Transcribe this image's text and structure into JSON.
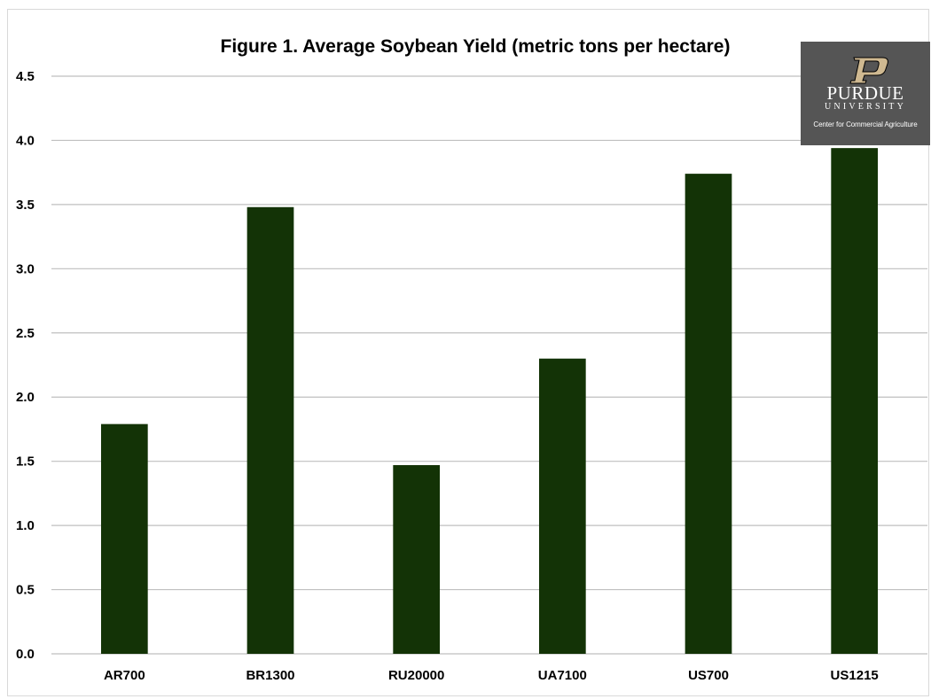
{
  "chart_data": {
    "type": "bar",
    "title": "Figure 1. Average Soybean Yield (metric tons per hectare)",
    "categories": [
      "AR700",
      "BR1300",
      "RU20000",
      "UA7100",
      "US700",
      "US1215"
    ],
    "values": [
      1.79,
      3.48,
      1.47,
      2.3,
      3.74,
      3.94
    ],
    "ylim": [
      0,
      4.5
    ],
    "yticks": [
      "0.0",
      "0.5",
      "1.0",
      "1.5",
      "2.0",
      "2.5",
      "3.0",
      "3.5",
      "4.0",
      "4.5"
    ],
    "xlabel": "",
    "ylabel": "",
    "grid": true,
    "bar_color": "#133306"
  },
  "logo": {
    "name": "PURDUE",
    "sub": "UNIVERSITY",
    "caption": "Center for Commercial Agriculture",
    "background": "#555555",
    "mark_color": "#cfb991",
    "mark_icon": "purdue-p-logo-icon"
  }
}
